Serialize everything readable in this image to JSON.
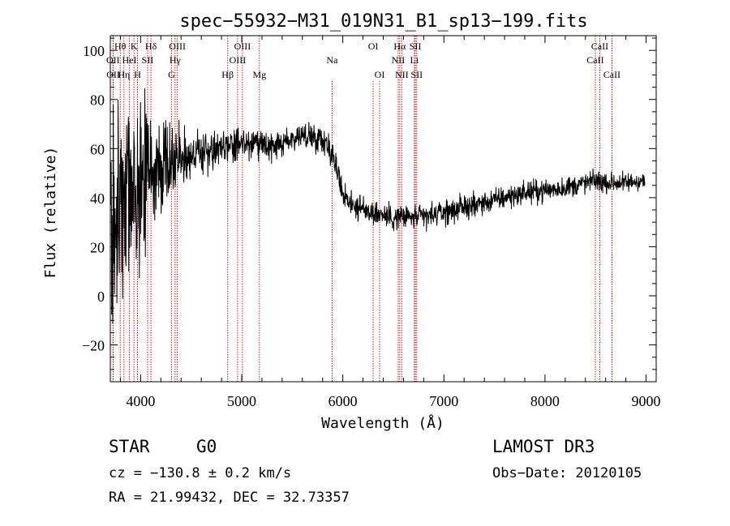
{
  "chart_data": {
    "type": "line",
    "title": "spec−55932−M31_019N31_B1_sp13−199.fits",
    "xlabel": "Wavelength (Å)",
    "ylabel": "Flux (relative)",
    "xlim": [
      3700,
      9100
    ],
    "ylim": [
      -35,
      106
    ],
    "xticks": [
      4000,
      5000,
      6000,
      7000,
      8000,
      9000
    ],
    "yticks": [
      -20,
      0,
      20,
      40,
      60,
      80,
      100
    ],
    "xtick_labels": [
      "4000",
      "5000",
      "6000",
      "7000",
      "8000",
      "9000"
    ],
    "ytick_labels": [
      "−20",
      "0",
      "20",
      "40",
      "60",
      "80",
      "100"
    ],
    "grid": false,
    "continuum": {
      "x": [
        3700,
        3800,
        3900,
        4000,
        4100,
        4200,
        4300,
        4400,
        4500,
        4600,
        4700,
        4800,
        4900,
        5000,
        5100,
        5200,
        5300,
        5400,
        5500,
        5600,
        5700,
        5800,
        5850,
        5900,
        5950,
        6000,
        6100,
        6200,
        6300,
        6400,
        6500,
        6600,
        6700,
        6800,
        6900,
        7000,
        7200,
        7400,
        7600,
        7800,
        8000,
        8200,
        8400,
        8500,
        8600,
        8800,
        8950,
        9000
      ],
      "y": [
        28,
        36,
        42,
        46,
        50,
        53,
        55,
        57,
        58,
        58,
        59,
        60,
        61,
        62,
        62,
        61,
        60,
        62,
        64,
        65,
        65,
        64,
        62,
        57,
        50,
        42,
        37,
        35,
        34,
        33,
        32,
        32,
        32,
        32,
        33,
        34,
        36,
        38,
        40,
        42,
        43,
        44,
        46,
        47,
        46,
        46,
        47,
        46
      ]
    },
    "noise_amplitude": [
      {
        "x": 3700,
        "value": 40
      },
      {
        "x": 3900,
        "value": 30
      },
      {
        "x": 4100,
        "value": 18
      },
      {
        "x": 4400,
        "value": 9
      },
      {
        "x": 5000,
        "value": 4
      },
      {
        "x": 6000,
        "value": 4
      },
      {
        "x": 9000,
        "value": 3
      }
    ],
    "spectral_features": {
      "short": [
        "Na",
        "OI"
      ],
      "line_markers": [
        {
          "label": "Hθ",
          "x": 3798,
          "row": 1
        },
        {
          "label": "OII",
          "x": 3727,
          "row": 2
        },
        {
          "label": "OII",
          "x": 3729,
          "row": 3
        },
        {
          "label": "Hη",
          "x": 3835,
          "row": 3
        },
        {
          "label": "K",
          "x": 3934,
          "row": 1
        },
        {
          "label": "HeI",
          "x": 3889,
          "row": 2
        },
        {
          "label": "H",
          "x": 3969,
          "row": 3
        },
        {
          "label": "Hδ",
          "x": 4102,
          "row": 1
        },
        {
          "label": "SII",
          "x": 4069,
          "row": 2
        },
        {
          "label": "OIII",
          "x": 4363,
          "row": 1
        },
        {
          "label": "Hγ",
          "x": 4341,
          "row": 2
        },
        {
          "label": "G",
          "x": 4305,
          "row": 3
        },
        {
          "label": "Hβ",
          "x": 4861,
          "row": 3
        },
        {
          "label": "OIII",
          "x": 5007,
          "row": 1
        },
        {
          "label": "OIII",
          "x": 4959,
          "row": 2
        },
        {
          "label": "Mg",
          "x": 5175,
          "row": 3
        },
        {
          "label": "Na",
          "x": 5894,
          "row": 2
        },
        {
          "label": "OI",
          "x": 6300,
          "row": 1
        },
        {
          "label": "OI",
          "x": 6364,
          "row": 3
        },
        {
          "label": "Hα",
          "x": 6563,
          "row": 1
        },
        {
          "label": "NII",
          "x": 6548,
          "row": 2
        },
        {
          "label": "NII",
          "x": 6583,
          "row": 3
        },
        {
          "label": "SII",
          "x": 6717,
          "row": 1
        },
        {
          "label": "Li",
          "x": 6708,
          "row": 2
        },
        {
          "label": "SII",
          "x": 6731,
          "row": 3
        },
        {
          "label": "CaII",
          "x": 8542,
          "row": 1
        },
        {
          "label": "CaII",
          "x": 8498,
          "row": 2
        },
        {
          "label": "CaII",
          "x": 8662,
          "row": 3
        }
      ]
    }
  },
  "info": {
    "object_class": "STAR",
    "subclass": "G0",
    "survey": "LAMOST DR3",
    "velocity": "cz = −130.8 ± 0.2 km/s",
    "obs_date": "Obs−Date: 20120105",
    "coords": "RA =  21.99432, DEC =  32.73357"
  }
}
